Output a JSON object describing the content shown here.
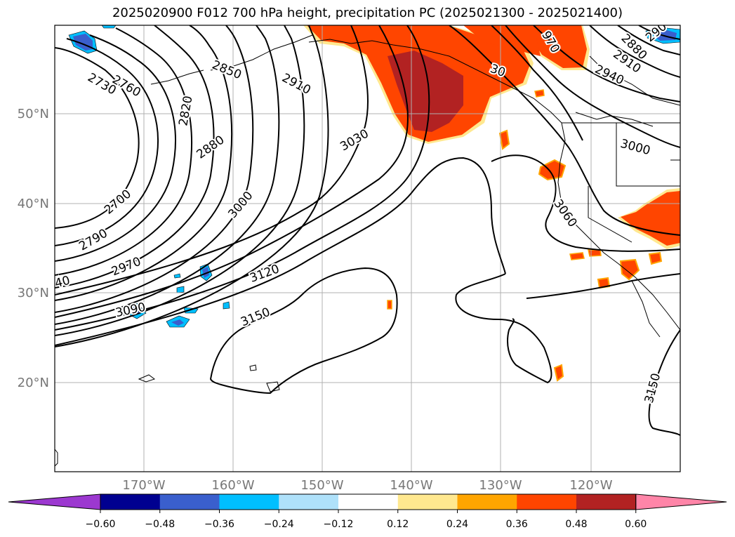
{
  "title": "2025020900 F012 700 hPa height, precipitation PC (2025021300 - 2025021400)",
  "map": {
    "lon_labels": [
      "170°W",
      "160°W",
      "150°W",
      "140°W",
      "130°W",
      "120°W"
    ],
    "lat_labels": [
      "50°N",
      "40°N",
      "30°N",
      "20°N"
    ],
    "gridlines": true,
    "contour_labels": [
      {
        "text": "2730",
        "rot": 30
      },
      {
        "text": "2760",
        "rot": 30
      },
      {
        "text": "2850",
        "rot": 22
      },
      {
        "text": "2910",
        "rot": 28
      },
      {
        "text": "2820",
        "rot": -80
      },
      {
        "text": "2880",
        "rot": -35
      },
      {
        "text": "3030",
        "rot": -30
      },
      {
        "text": "2700",
        "rot": -40
      },
      {
        "text": "3000",
        "rot": -50
      },
      {
        "text": "2790",
        "rot": -30
      },
      {
        "text": "2970",
        "rot": -22
      },
      {
        "text": "40",
        "rot": -15
      },
      {
        "text": "3120",
        "rot": -20
      },
      {
        "text": "3090",
        "rot": -12
      },
      {
        "text": "3150",
        "rot": -22
      },
      {
        "text": "3000",
        "rot": 15
      },
      {
        "text": "3060",
        "rot": 55
      },
      {
        "text": "2940",
        "rot": 25
      },
      {
        "text": "2910",
        "rot": 35
      },
      {
        "text": "2880",
        "rot": 45
      },
      {
        "text": "970",
        "rot": 60
      },
      {
        "text": "290",
        "rot": -40
      },
      {
        "text": "3150",
        "rot": -75
      },
      {
        "text": "30",
        "rot": 20
      }
    ]
  },
  "colorbar": {
    "ticks": [
      "−0.60",
      "−0.48",
      "−0.36",
      "−0.24",
      "−0.12",
      "0.12",
      "0.24",
      "0.36",
      "0.48",
      "0.60"
    ],
    "colors": [
      "#9c38d0",
      "#000090",
      "#3a5fcd",
      "#00bfff",
      "#afe1fa",
      "#ffffff",
      "#ffe88f",
      "#ffa500",
      "#ff4500",
      "#b22222",
      "#ff85a8"
    ]
  }
}
